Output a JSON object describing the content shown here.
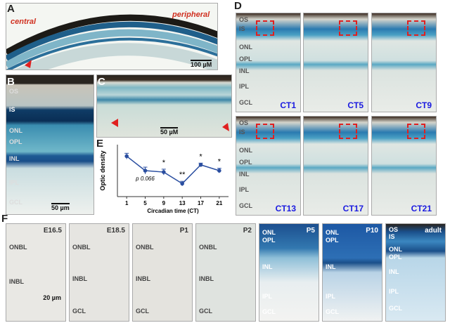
{
  "panels": {
    "A": {
      "label": "A",
      "central": "central",
      "peripheral": "peripheral",
      "scale": "100 µM"
    },
    "B": {
      "label": "B",
      "layers": [
        "OS",
        "IS",
        "ONL",
        "OPL",
        "INL",
        "IPL",
        "GCL"
      ],
      "scale": "50 µm"
    },
    "C": {
      "label": "C",
      "scale": "50 µM"
    },
    "D": {
      "label": "D",
      "times": [
        "CT1",
        "CT5",
        "CT9",
        "CT13",
        "CT17",
        "CT21"
      ],
      "layers_top": [
        "OS",
        "IS",
        "ONL",
        "OPL",
        "INL",
        "IPL",
        "GCL"
      ],
      "layers_bottom": [
        "OS",
        "IS",
        "ONL",
        "OPL",
        "INL",
        "IPL",
        "GCL"
      ]
    },
    "E": {
      "label": "E"
    },
    "F": {
      "label": "F",
      "stages": [
        {
          "name": "E16.5",
          "layers": [
            "ONBL",
            "INBL"
          ],
          "scale": "20 µm"
        },
        {
          "name": "E18.5",
          "layers": [
            "ONBL",
            "INBL",
            "GCL"
          ]
        },
        {
          "name": "P1",
          "layers": [
            "ONBL",
            "INBL",
            "GCL"
          ]
        },
        {
          "name": "P2",
          "layers": [
            "ONBL",
            "INBL",
            "GCL"
          ]
        },
        {
          "name": "P5",
          "layers": [
            "ONL",
            "OPL",
            "INL",
            "IPL",
            "GCL"
          ]
        },
        {
          "name": "P10",
          "layers": [
            "ONL",
            "OPL",
            "INL",
            "IPL",
            "GCL"
          ]
        },
        {
          "name": "adult",
          "layers": [
            "OS",
            "IS",
            "ONL",
            "OPL",
            "INL",
            "IPL",
            "GCL"
          ]
        }
      ]
    }
  },
  "chart_data": {
    "type": "line",
    "y_label": "Optic density",
    "x_label": "Circadian time (CT)",
    "x": [
      1,
      5,
      9,
      13,
      17,
      21
    ],
    "values": [
      14,
      9,
      8.5,
      4.5,
      11,
      9
    ],
    "errors": [
      1,
      1.2,
      1,
      0.8,
      0.6,
      0.8
    ],
    "significance": [
      null,
      null,
      "*",
      "**",
      "*",
      "*"
    ],
    "p_label": "p 0.066",
    "xlim": [
      -1,
      23
    ],
    "ylim": [
      0,
      18
    ],
    "xticks": [
      1,
      5,
      9,
      13,
      17,
      21
    ],
    "color": "#2a4ea0"
  }
}
